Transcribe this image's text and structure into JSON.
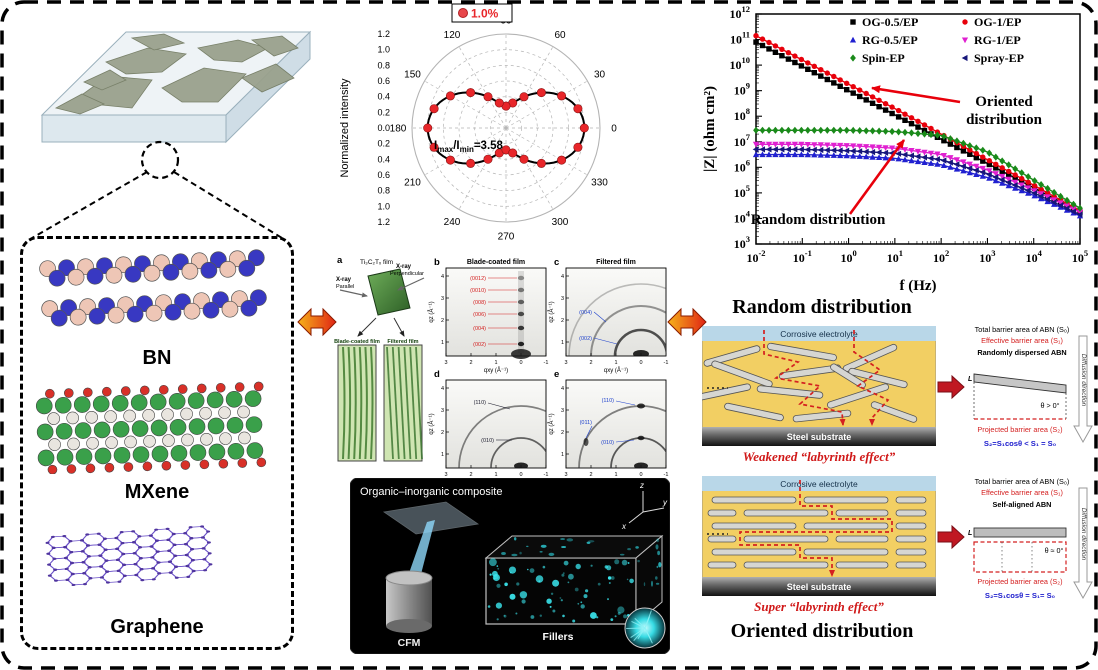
{
  "left_panel": {
    "bn_label": "BN",
    "mxene_label": "MXene",
    "graphene_label": "Graphene"
  },
  "chart_data": [
    {
      "id": "orientation-polar",
      "type": "polar-line",
      "legend": {
        "label": "1.0%"
      },
      "ylabel": "Normalized intensity",
      "radial_ticks": [
        1.2,
        1.0,
        0.8,
        0.6,
        0.4,
        0.2,
        0.0,
        0.2,
        0.4,
        0.6,
        0.8,
        1.0,
        1.2
      ],
      "angle_ticks": [
        0,
        30,
        60,
        90,
        120,
        150,
        180,
        210,
        240,
        270,
        300,
        330
      ],
      "r_max": 1.2,
      "ratio_annotation": {
        "i1": "I",
        "s1": "max",
        "i2": "/I",
        "s2": "min",
        "eq": "=3.58"
      },
      "curve": {
        "rmin": 0.279,
        "rmax": 1.0,
        "model": "r(θ)=rmin+(rmax−rmin)·cos²θ"
      },
      "point_color": "#e8262a",
      "points": [
        [
          0,
          1.0
        ],
        [
          15,
          0.95
        ],
        [
          30,
          0.82
        ],
        [
          45,
          0.64
        ],
        [
          60,
          0.46
        ],
        [
          75,
          0.33
        ],
        [
          90,
          0.28
        ],
        [
          105,
          0.33
        ],
        [
          120,
          0.46
        ],
        [
          135,
          0.64
        ],
        [
          150,
          0.82
        ],
        [
          165,
          0.95
        ],
        [
          180,
          1.0
        ],
        [
          195,
          0.95
        ],
        [
          210,
          0.82
        ],
        [
          225,
          0.64
        ],
        [
          240,
          0.46
        ],
        [
          255,
          0.33
        ],
        [
          270,
          0.28
        ],
        [
          285,
          0.33
        ],
        [
          300,
          0.46
        ],
        [
          315,
          0.64
        ],
        [
          330,
          0.82
        ],
        [
          345,
          0.95
        ]
      ]
    },
    {
      "id": "impedance-bode",
      "type": "line",
      "x_scale": "log",
      "y_scale": "log",
      "xlabel": "f (Hz)",
      "ylabel": "|Z| (ohm cm²)",
      "x_log_range": [
        -2,
        5
      ],
      "y_log_range": [
        3,
        12
      ],
      "series": [
        {
          "name": "OG-0.5/EP",
          "color": "#000000",
          "marker": "square",
          "points_logxy": [
            [
              -2,
              10.9
            ],
            [
              -1,
              9.95
            ],
            [
              0,
              9.0
            ],
            [
              1,
              8.05
            ],
            [
              2,
              7.1
            ],
            [
              3,
              6.15
            ],
            [
              4,
              5.2
            ],
            [
              5,
              4.25
            ]
          ]
        },
        {
          "name": "OG-1/EP",
          "color": "#e8000b",
          "marker": "circle",
          "points_logxy": [
            [
              -2,
              11.15
            ],
            [
              -1,
              10.2
            ],
            [
              0,
              9.25
            ],
            [
              1,
              8.3
            ],
            [
              2,
              7.3
            ],
            [
              3,
              6.3
            ],
            [
              4,
              5.3
            ],
            [
              5,
              4.3
            ]
          ]
        },
        {
          "name": "RG-0.5/EP",
          "color": "#2020d0",
          "marker": "triangle-up",
          "points_logxy": [
            [
              -2,
              6.5
            ],
            [
              -1,
              6.5
            ],
            [
              0,
              6.45
            ],
            [
              1,
              6.35
            ],
            [
              2,
              6.1
            ],
            [
              3,
              5.6
            ],
            [
              4,
              4.9
            ],
            [
              5,
              4.1
            ]
          ]
        },
        {
          "name": "RG-1/EP",
          "color": "#e020d0",
          "marker": "triangle-down",
          "points_logxy": [
            [
              -2,
              6.9
            ],
            [
              -1,
              6.9
            ],
            [
              0,
              6.85
            ],
            [
              1,
              6.75
            ],
            [
              2,
              6.5
            ],
            [
              3,
              5.9
            ],
            [
              4,
              5.1
            ],
            [
              5,
              4.25
            ]
          ]
        },
        {
          "name": "Spin-EP",
          "color": "#1a8a1a",
          "marker": "diamond",
          "points_logxy": [
            [
              -2,
              7.45
            ],
            [
              -1,
              7.45
            ],
            [
              0,
              7.45
            ],
            [
              1,
              7.4
            ],
            [
              2,
              7.25
            ],
            [
              3,
              6.6
            ],
            [
              4,
              5.5
            ],
            [
              5,
              4.4
            ]
          ]
        },
        {
          "name": "Spray-EP",
          "color": "#16167a",
          "marker": "triangle-left",
          "points_logxy": [
            [
              -2,
              6.7
            ],
            [
              -1,
              6.7
            ],
            [
              0,
              6.65
            ],
            [
              1,
              6.55
            ],
            [
              2,
              6.3
            ],
            [
              3,
              5.75
            ],
            [
              4,
              5.0
            ],
            [
              5,
              4.15
            ]
          ]
        }
      ],
      "annotations": [
        {
          "text": "Oriented distribution",
          "color": "#000000",
          "arrow_color": "#e8000b"
        },
        {
          "text": "Random distribution",
          "color": "#000000",
          "arrow_color": "#e8000b"
        }
      ]
    }
  ],
  "giwaxs": {
    "a": {
      "letter": "a",
      "film": "Ti₃C₂Tₓ film",
      "xray_left": "X-ray",
      "dir_left": "Parallel",
      "xray_right": "X-ray",
      "dir_right": "Perpendicular",
      "img1": "Blade-coated film",
      "img2": "Filtered film"
    },
    "b": {
      "letter": "b",
      "title": "Blade-coated film",
      "peaks": [
        "(0012)",
        "(0010)",
        "(008)",
        "(006)",
        "(004)",
        "(002)"
      ]
    },
    "c": {
      "letter": "c",
      "title": "Filtered film",
      "peaks": [
        "(004)",
        "(002)"
      ]
    },
    "d": {
      "letter": "d",
      "peaks": [
        "(110)",
        "(010)"
      ]
    },
    "e": {
      "letter": "e",
      "peaks": [
        "(110)",
        "(011)",
        "(010)"
      ]
    },
    "x_ticks": [
      "3",
      "2",
      "1",
      "0",
      "-1"
    ],
    "y_ticks": [
      "4",
      "3",
      "2",
      "1"
    ],
    "x_label": "qxy (Å⁻¹)",
    "y_label": "qz (Å⁻¹)"
  },
  "cfm": {
    "title": "Organic–inorganic composite",
    "probe_label": "CFM",
    "fillers_label": "Fillers",
    "axis_z": "z",
    "axis_x": "x",
    "axis_y": "y"
  },
  "right_panel": {
    "random_title": "Random distribution",
    "oriented_title": "Oriented distribution",
    "electrolyte_label": "Corrosive electrolyte",
    "substrate_label": "Steel substrate",
    "random_caption": "Weakened “labyrinth effect”",
    "oriented_caption": "Super “labyrinth effect”",
    "diagram_random": {
      "line1": "Total barrier area of ABN (S₀)",
      "line2": "Effective barrier area (S₁)",
      "bar_label": "Randomly dispersed ABN",
      "angle": "θ > 0°",
      "length_label": "L",
      "projected": "Projected barrier area (S₂)",
      "formula": "S₂=S₁cosθ < S₁ = S₀",
      "diffusion": "Diffusion direction"
    },
    "diagram_oriented": {
      "line1": "Total barrier area of ABN (S₀)",
      "line2": "Effective barrier area (S₁)",
      "bar_label": "Self-aligned ABN",
      "angle": "θ ≈ 0°",
      "length_label": "L",
      "projected": "Projected barrier area (S₂)",
      "formula": "S₂=S₁cosθ = S₁= S₀",
      "diffusion": "Diffusion direction"
    }
  }
}
